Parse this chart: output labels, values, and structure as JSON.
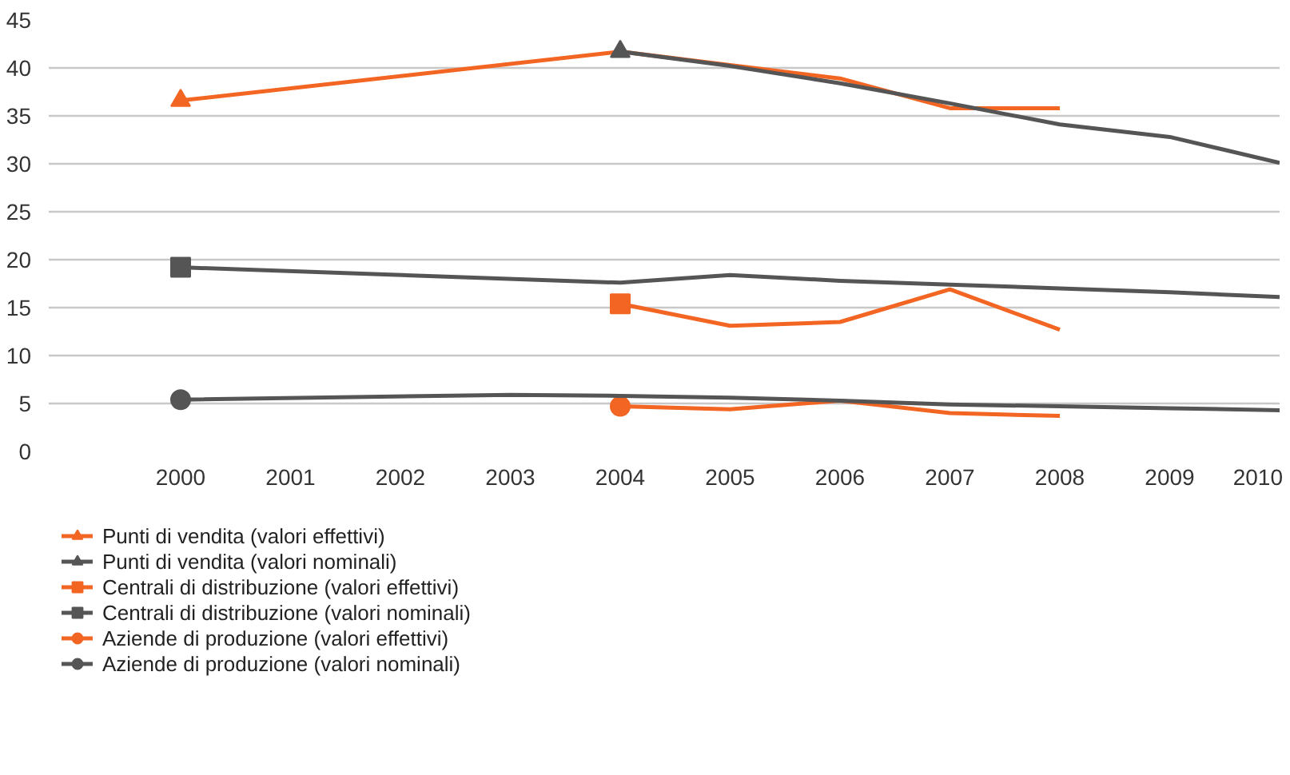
{
  "chart_data": {
    "type": "line",
    "xlim": [
      1998.8,
      2010
    ],
    "xticks": [
      2000,
      2001,
      2002,
      2003,
      2004,
      2005,
      2006,
      2007,
      2008,
      2009,
      2010
    ],
    "ylim": [
      0,
      45
    ],
    "yticks": [
      0,
      5,
      10,
      15,
      20,
      25,
      30,
      35,
      40,
      45
    ],
    "grid": "y",
    "legend": "bottom",
    "series": [
      {
        "name": "Punti di vendita (valori effettivi)",
        "color": "#f26522",
        "x": [
          2000,
          2004,
          2005,
          2006,
          2007,
          2008
        ],
        "values": [
          36.6,
          41.7,
          40.3,
          38.9,
          35.8,
          35.8
        ]
      },
      {
        "type": "scatter",
        "color": "#f26522",
        "marker": "triangle",
        "x": [
          2000
        ],
        "values": [
          36.6
        ]
      },
      {
        "name": "Punti di vendita (valori nominali)",
        "color": "#555555",
        "x": [
          2004,
          2005,
          2006,
          2007,
          2008,
          2009,
          2010
        ],
        "values": [
          41.7,
          40.2,
          38.4,
          36.3,
          34.1,
          32.8,
          30.1
        ]
      },
      {
        "type": "scatter",
        "color": "#555555",
        "marker": "triangle",
        "x": [
          2004
        ],
        "values": [
          41.7
        ]
      },
      {
        "name": "Centrali di distribuzione (valori effettivi)",
        "color": "#f26522",
        "x": [
          2004,
          2005,
          2006,
          2007,
          2008
        ],
        "values": [
          15.4,
          13.1,
          13.5,
          16.9,
          12.7
        ]
      },
      {
        "type": "scatter",
        "color": "#f26522",
        "marker": "square",
        "x": [
          2004
        ],
        "values": [
          15.4
        ]
      },
      {
        "name": "Centrali di distribuzione (valori nominali)",
        "color": "#555555",
        "x": [
          2000,
          2004,
          2005,
          2006,
          2007,
          2008,
          2009,
          2010
        ],
        "values": [
          19.2,
          17.6,
          18.4,
          17.8,
          17.4,
          17.0,
          16.6,
          16.1
        ]
      },
      {
        "type": "scatter",
        "color": "#555555",
        "marker": "square",
        "x": [
          2000
        ],
        "values": [
          19.2
        ]
      },
      {
        "name": "Aziende di produzione (valori effettivi)",
        "color": "#f26522",
        "x": [
          2004,
          2005,
          2006,
          2007,
          2008
        ],
        "values": [
          4.7,
          4.4,
          5.3,
          4.0,
          3.7
        ]
      },
      {
        "type": "scatter",
        "color": "#f26522",
        "marker": "circle",
        "x": [
          2004
        ],
        "values": [
          4.7
        ]
      },
      {
        "name": "Aziende di produzione (valori nominali)",
        "color": "#555555",
        "x": [
          2000,
          2003,
          2004,
          2005,
          2006,
          2007,
          2008,
          2009,
          2010
        ],
        "values": [
          5.4,
          5.9,
          5.8,
          5.6,
          5.3,
          4.9,
          4.7,
          4.5,
          4.3
        ]
      },
      {
        "type": "scatter",
        "color": "#555555",
        "marker": "circle",
        "x": [
          2000
        ],
        "values": [
          5.4
        ]
      }
    ]
  }
}
